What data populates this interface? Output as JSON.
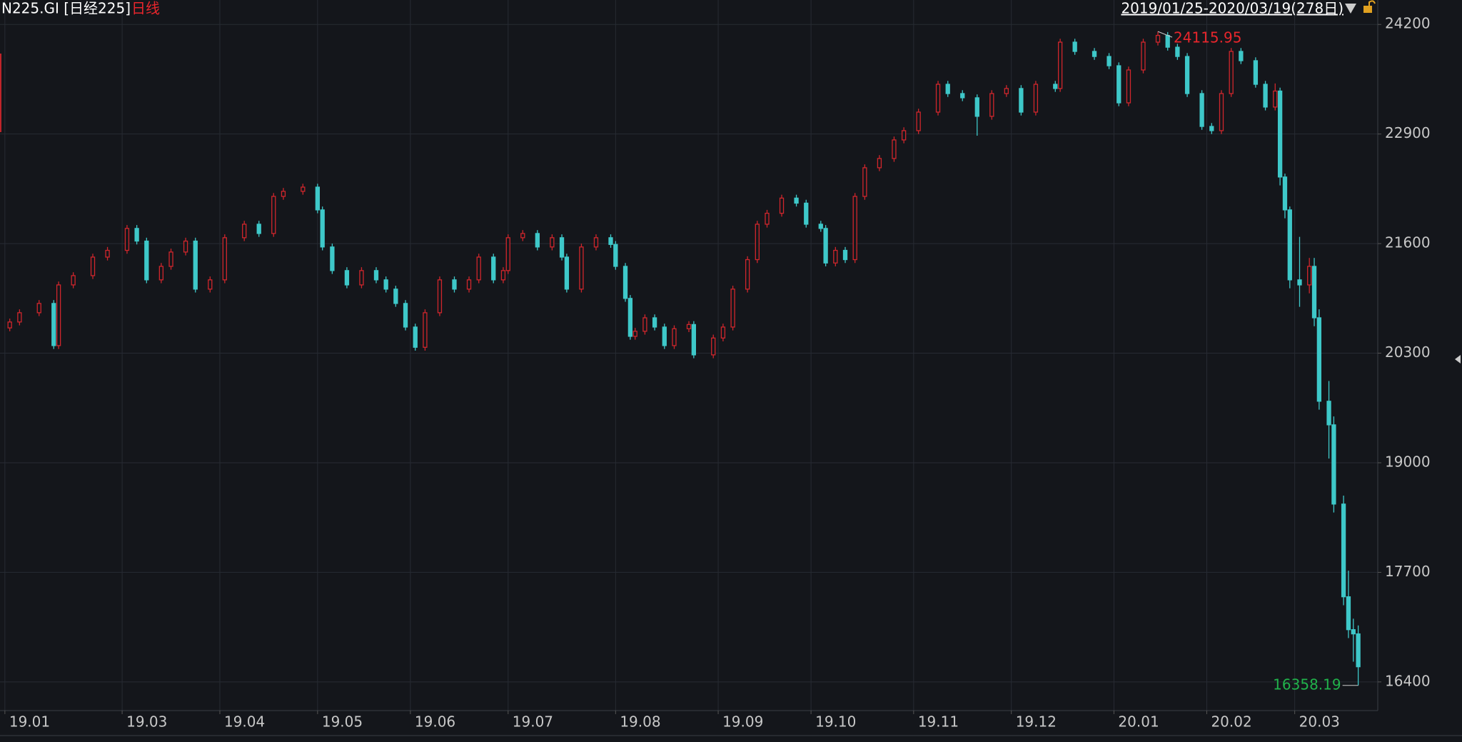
{
  "header": {
    "symbol": "N225.GI [日经225]",
    "period": "日线",
    "range": "2019/01/25-2020/03/19(278日)"
  },
  "chart_data": {
    "type": "candlestick",
    "x": [
      1,
      3,
      7,
      10,
      11,
      14,
      18,
      21,
      25,
      27,
      29,
      32,
      34,
      37,
      39,
      42,
      45,
      49,
      52,
      55,
      57,
      61,
      64,
      65,
      67,
      70,
      73,
      76,
      78,
      80,
      82,
      84,
      86,
      89,
      92,
      95,
      97,
      100,
      102,
      103,
      106,
      109,
      112,
      114,
      115,
      118,
      121,
      124,
      125,
      127,
      128,
      129,
      131,
      133,
      135,
      137,
      140,
      141,
      145,
      147,
      149,
      152,
      154,
      156,
      159,
      162,
      164,
      167,
      168,
      170,
      172,
      174,
      176,
      179,
      182,
      184,
      187,
      191,
      193,
      196,
      199,
      202,
      205,
      208,
      211,
      215,
      216,
      219,
      223,
      226,
      228,
      230,
      233,
      236,
      238,
      240,
      242,
      245,
      247,
      249,
      251,
      253,
      256,
      258,
      260,
      261,
      262,
      263,
      265,
      267,
      268,
      269,
      271,
      272,
      274,
      275,
      276,
      277
    ],
    "open": [
      20600,
      20670,
      20780,
      20890,
      20390,
      21110,
      21220,
      21440,
      21520,
      21780,
      21630,
      21170,
      21330,
      21500,
      21630,
      21060,
      21170,
      21670,
      21830,
      21720,
      22160,
      22220,
      22270,
      22000,
      21560,
      21280,
      21110,
      21280,
      21170,
      21060,
      20890,
      20610,
      20370,
      20780,
      21170,
      21060,
      21170,
      21440,
      21170,
      21280,
      21670,
      21720,
      21560,
      21670,
      21440,
      21060,
      21560,
      21670,
      21590,
      21330,
      20950,
      20500,
      20560,
      20720,
      20610,
      20390,
      20590,
      20640,
      20280,
      20480,
      20610,
      21060,
      21410,
      21830,
      21960,
      22140,
      22080,
      21830,
      21780,
      21370,
      21520,
      21410,
      22160,
      22500,
      22610,
      22830,
      22940,
      23160,
      23490,
      23380,
      23330,
      23110,
      23380,
      23440,
      23160,
      23490,
      23440,
      23990,
      23880,
      23820,
      23710,
      23270,
      23660,
      23990,
      24070,
      23930,
      23820,
      23380,
      22990,
      22940,
      23380,
      23880,
      23770,
      23490,
      23220,
      23410,
      22390,
      22000,
      21170,
      21110,
      21330,
      20720,
      19730,
      19450,
      18510,
      17410,
      17020,
      16970
    ],
    "high": [
      20710,
      20820,
      20930,
      20930,
      21150,
      21260,
      21480,
      21560,
      21820,
      21820,
      21670,
      21370,
      21540,
      21670,
      21670,
      21210,
      21710,
      21870,
      21870,
      22200,
      22260,
      22310,
      22310,
      22040,
      21600,
      21320,
      21320,
      21320,
      21210,
      21100,
      20930,
      20650,
      20820,
      21210,
      21210,
      21210,
      21480,
      21480,
      21320,
      21710,
      21760,
      21760,
      21710,
      21710,
      21480,
      21600,
      21710,
      21710,
      21630,
      21370,
      20990,
      20600,
      20760,
      20760,
      20650,
      20630,
      20680,
      20680,
      20520,
      20650,
      21100,
      21450,
      21870,
      22000,
      22180,
      22180,
      22120,
      21870,
      21820,
      21560,
      21560,
      22200,
      22540,
      22650,
      22870,
      22980,
      23200,
      23530,
      23530,
      23420,
      23370,
      23420,
      23480,
      23480,
      23530,
      23530,
      24030,
      24030,
      23920,
      23860,
      23750,
      23700,
      24030,
      24115.95,
      24110,
      23970,
      23860,
      23420,
      23030,
      23420,
      23920,
      23920,
      23810,
      23530,
      23500,
      23450,
      22430,
      22040,
      21680,
      21430,
      21430,
      20820,
      19970,
      19550,
      18610,
      17720,
      17150,
      17070
    ],
    "low": [
      20560,
      20630,
      20740,
      20350,
      20350,
      21070,
      21180,
      21400,
      21480,
      21590,
      21130,
      21130,
      21290,
      21460,
      21020,
      21020,
      21130,
      21630,
      21680,
      21680,
      22120,
      22180,
      21960,
      21520,
      21240,
      21070,
      21070,
      21130,
      21020,
      20850,
      20570,
      20330,
      20330,
      20740,
      21020,
      21020,
      21130,
      21130,
      21130,
      21240,
      21630,
      21520,
      21520,
      21400,
      21020,
      21020,
      21520,
      21550,
      21290,
      20910,
      20460,
      20460,
      20520,
      20570,
      20350,
      20350,
      20550,
      20240,
      20240,
      20440,
      20570,
      21020,
      21370,
      21790,
      21920,
      22040,
      21790,
      21740,
      21330,
      21330,
      21370,
      21370,
      22120,
      22460,
      22570,
      22790,
      22900,
      23120,
      23340,
      23290,
      22880,
      23070,
      23340,
      23120,
      23120,
      23400,
      23400,
      23840,
      23780,
      23670,
      23230,
      23230,
      23620,
      23950,
      23890,
      23780,
      23340,
      22950,
      22900,
      22900,
      23340,
      23730,
      23450,
      23180,
      23180,
      22290,
      21900,
      21070,
      20850,
      21010,
      20620,
      19630,
      19050,
      18410,
      17310,
      16920,
      16640,
      16358.19
    ],
    "close": [
      20670,
      20780,
      20890,
      20390,
      21110,
      21220,
      21440,
      21520,
      21780,
      21630,
      21170,
      21330,
      21500,
      21630,
      21060,
      21170,
      21670,
      21830,
      21720,
      22160,
      22220,
      22270,
      22000,
      21560,
      21280,
      21110,
      21280,
      21170,
      21060,
      20890,
      20610,
      20370,
      20780,
      21170,
      21060,
      21170,
      21440,
      21170,
      21280,
      21670,
      21720,
      21560,
      21670,
      21440,
      21060,
      21560,
      21670,
      21590,
      21330,
      20950,
      20500,
      20560,
      20720,
      20610,
      20390,
      20590,
      20640,
      20280,
      20480,
      20610,
      21060,
      21410,
      21830,
      21960,
      22140,
      22080,
      21830,
      21780,
      21370,
      21520,
      21410,
      22160,
      22500,
      22610,
      22830,
      22940,
      23160,
      23490,
      23380,
      23330,
      23110,
      23380,
      23440,
      23160,
      23490,
      23440,
      23990,
      23880,
      23820,
      23710,
      23270,
      23660,
      23990,
      24070,
      23930,
      23820,
      23380,
      22990,
      22940,
      23380,
      23880,
      23770,
      23490,
      23220,
      23410,
      22390,
      22000,
      21170,
      21110,
      21330,
      20720,
      19730,
      19450,
      18510,
      17410,
      17020,
      16970,
      16580
    ],
    "up_color": "#d0262c",
    "down_color": "#3ec8c9",
    "ylim": [
      16060,
      24490
    ],
    "yticks": [
      16400,
      17700,
      19000,
      20300,
      21600,
      22900,
      24200
    ],
    "xlim": [
      -1,
      281
    ],
    "xticks": [
      {
        "value": 0,
        "label": "19.01"
      },
      {
        "value": 24,
        "label": "19.03"
      },
      {
        "value": 44,
        "label": "19.04"
      },
      {
        "value": 64,
        "label": "19.05"
      },
      {
        "value": 83,
        "label": "19.06"
      },
      {
        "value": 103,
        "label": "19.07"
      },
      {
        "value": 125,
        "label": "19.08"
      },
      {
        "value": 146,
        "label": "19.09"
      },
      {
        "value": 165,
        "label": "19.10"
      },
      {
        "value": 186,
        "label": "19.11"
      },
      {
        "value": 206,
        "label": "19.12"
      },
      {
        "value": 227,
        "label": "20.01"
      },
      {
        "value": 246,
        "label": "20.02"
      },
      {
        "value": 264,
        "label": "20.03"
      }
    ],
    "grid": true
  }
}
